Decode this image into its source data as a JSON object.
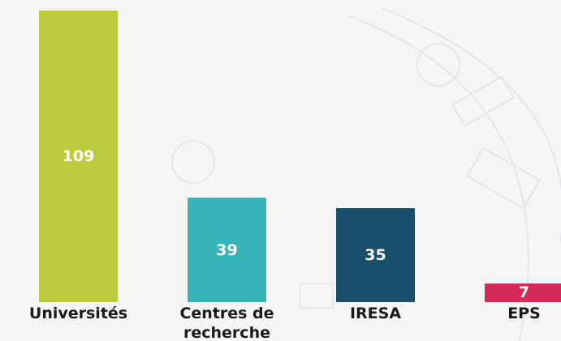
{
  "chart_data": {
    "type": "bar",
    "categories": [
      "Universités",
      "Centres de recherche",
      "IRESA",
      "EPS"
    ],
    "values": [
      109,
      39,
      35,
      7
    ],
    "colors": [
      "#bccb3c",
      "#36b5b9",
      "#174f6a",
      "#d42a5a"
    ]
  }
}
